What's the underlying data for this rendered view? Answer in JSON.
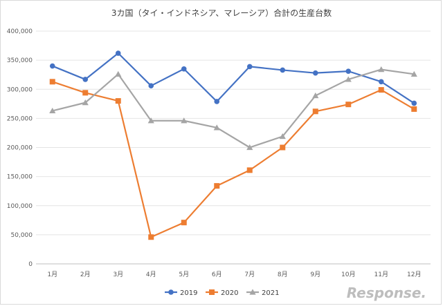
{
  "chart_data": {
    "type": "line",
    "title": "3カ国（タイ・インドネシア、マレーシア）合計の生産台数",
    "categories": [
      "1月",
      "2月",
      "3月",
      "4月",
      "5月",
      "6月",
      "7月",
      "8月",
      "9月",
      "10月",
      "11月",
      "12月"
    ],
    "y_ticks": [
      "0",
      "50,000",
      "100,000",
      "150,000",
      "200,000",
      "250,000",
      "300,000",
      "350,000",
      "400,000"
    ],
    "ylim": [
      0,
      400000
    ],
    "grid": true,
    "legend_position": "bottom",
    "series": [
      {
        "name": "2019",
        "color": "#4472c4",
        "marker": "circle",
        "values": [
          340000,
          317000,
          362000,
          306000,
          335000,
          279000,
          339000,
          333000,
          328000,
          331000,
          313000,
          276000
        ]
      },
      {
        "name": "2020",
        "color": "#ed7d31",
        "marker": "square",
        "values": [
          313000,
          294000,
          280000,
          46000,
          71000,
          134000,
          161000,
          200000,
          262000,
          274000,
          299000,
          266000
        ]
      },
      {
        "name": "2021",
        "color": "#a5a5a5",
        "marker": "triangle",
        "values": [
          263000,
          277000,
          326000,
          246000,
          246000,
          234000,
          200000,
          219000,
          289000,
          317000,
          334000,
          326000
        ]
      }
    ]
  },
  "watermark": "Response."
}
